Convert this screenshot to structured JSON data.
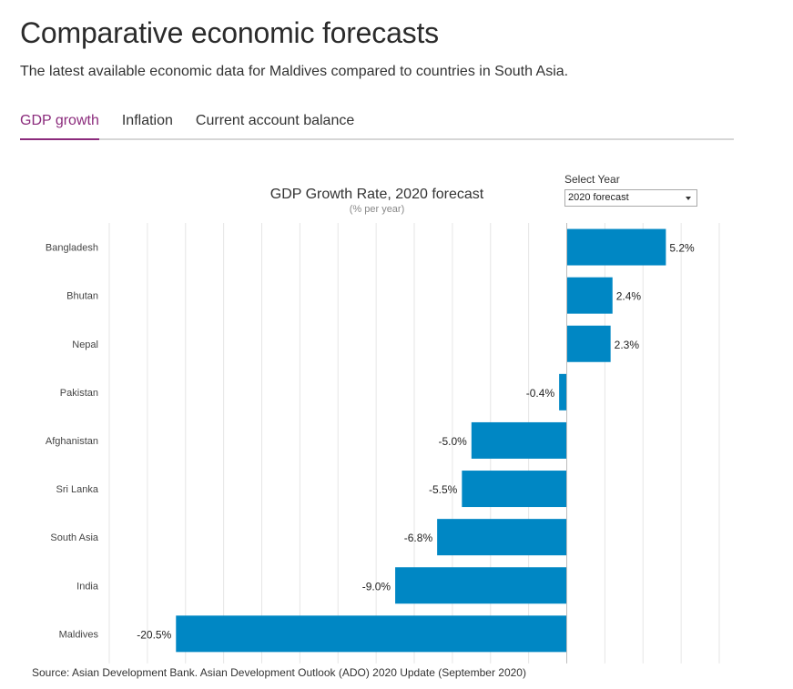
{
  "header": {
    "title": "Comparative economic forecasts",
    "subtitle": "The latest available economic data for Maldives compared to countries in South Asia."
  },
  "tabs": [
    {
      "label": "GDP growth",
      "active": true
    },
    {
      "label": "Inflation",
      "active": false
    },
    {
      "label": "Current account balance",
      "active": false
    }
  ],
  "year_selector": {
    "label": "Select Year",
    "selected": "2020 forecast"
  },
  "source": "Source: Asian Development Bank. Asian Development Outlook (ADO) 2020 Update (September 2020)",
  "colors": {
    "accent": "#8b2b7c",
    "bar": "#0087c4",
    "grid": "#e6e6e6",
    "zero_line": "#bdbdbd"
  },
  "chart_data": {
    "type": "bar",
    "orientation": "horizontal",
    "title": "GDP Growth Rate, 2020 forecast",
    "subtitle": "(% per year)",
    "categories": [
      "Bangladesh",
      "Bhutan",
      "Nepal",
      "Pakistan",
      "Afghanistan",
      "Sri Lanka",
      "South Asia",
      "India",
      "Maldives"
    ],
    "values": [
      5.2,
      2.4,
      2.3,
      -0.4,
      -5.0,
      -5.5,
      -6.8,
      -9.0,
      -20.5
    ],
    "value_labels": [
      "5.2%",
      "2.4%",
      "2.3%",
      "-0.4%",
      "-5.0%",
      "-5.5%",
      "-6.8%",
      "-9.0%",
      "-20.5%"
    ],
    "xlim": [
      -24,
      8
    ],
    "grid_step": 2,
    "unit": "%",
    "grid": true
  }
}
